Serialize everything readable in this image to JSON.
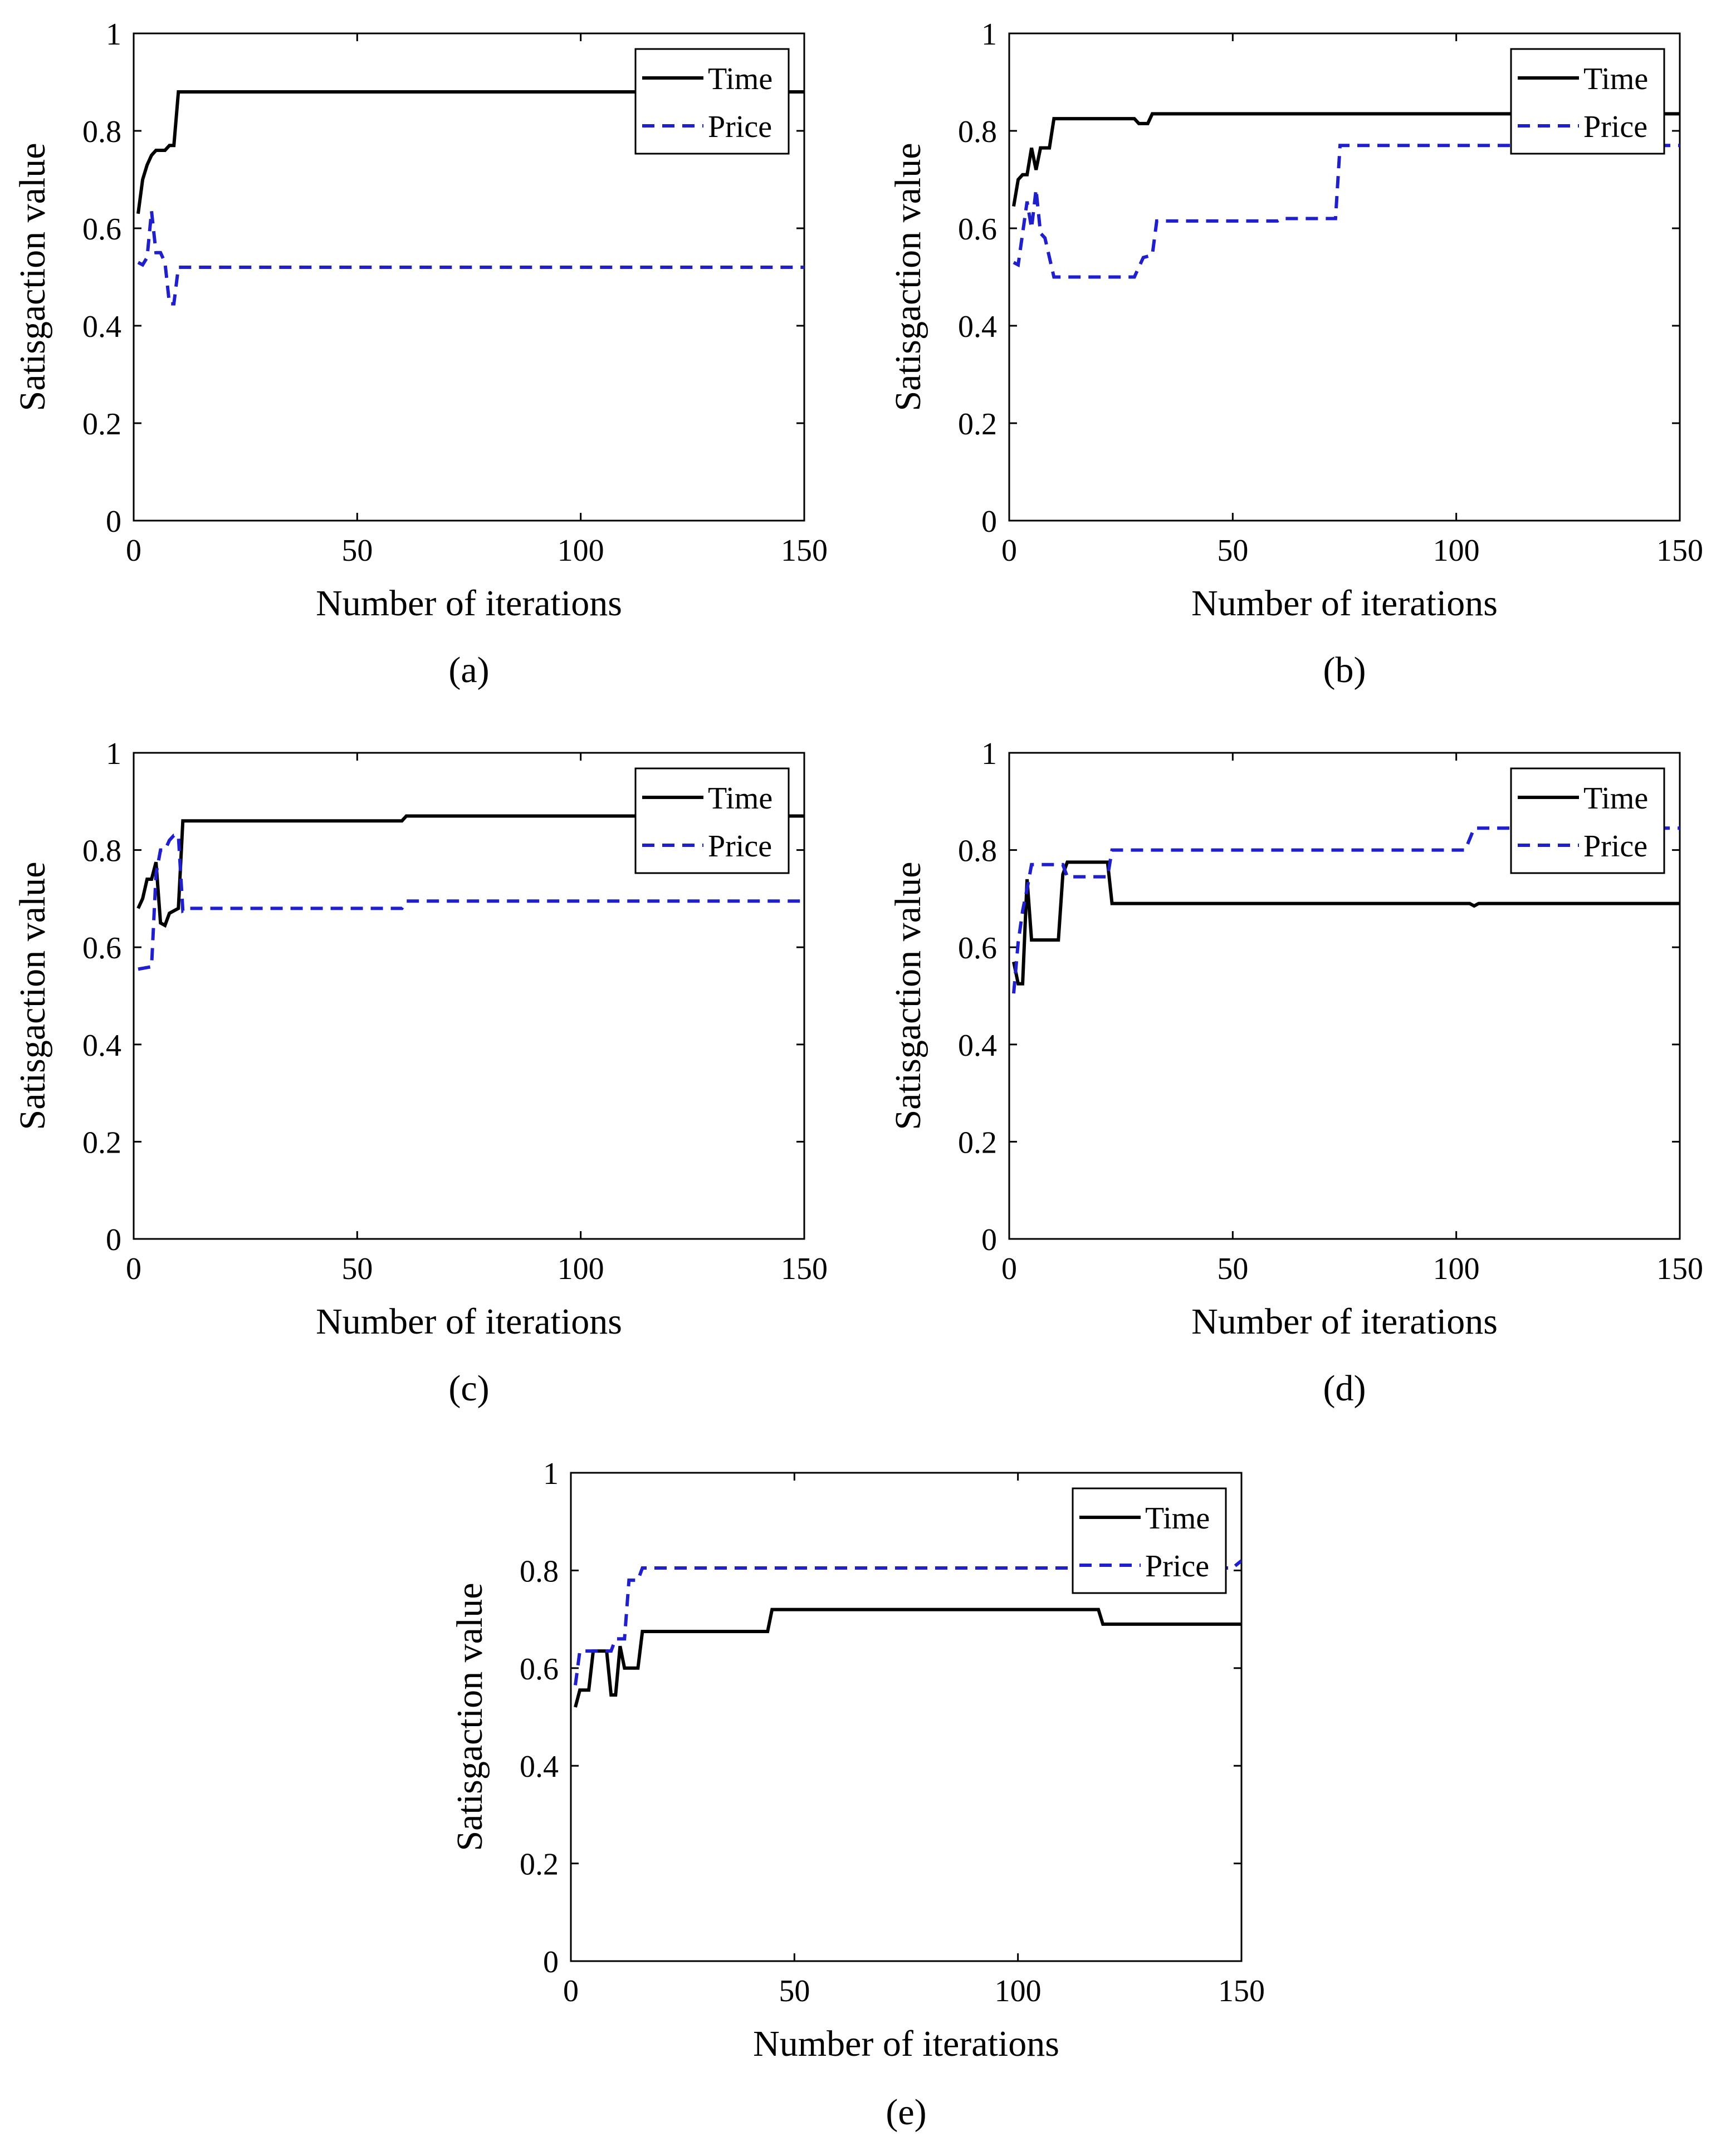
{
  "colors": {
    "time": "#000000",
    "price": "#1f1fcc",
    "axes": "#000000"
  },
  "chart_data": [
    {
      "type": "line",
      "panel": "a",
      "caption": "(a)",
      "xlabel": "Number of iterations",
      "ylabel": "Satisgaction value",
      "xlim": [
        0,
        150
      ],
      "ylim": [
        0,
        1
      ],
      "xticks": [
        0,
        50,
        100,
        150
      ],
      "xtick_labels": [
        "0",
        "50",
        "100",
        "150"
      ],
      "yticks": [
        0,
        0.2,
        0.4,
        0.6,
        0.8,
        1
      ],
      "ytick_labels": [
        "0",
        "0.2",
        "0.4",
        "0.6",
        "0.8",
        "1"
      ],
      "legend": [
        "Time",
        "Price"
      ],
      "legend_position": "top-right",
      "series": [
        {
          "name": "Time",
          "style": "solid",
          "points": [
            [
              1,
              0.63
            ],
            [
              2,
              0.7
            ],
            [
              3,
              0.73
            ],
            [
              4,
              0.75
            ],
            [
              5,
              0.76
            ],
            [
              7,
              0.76
            ],
            [
              8,
              0.77
            ],
            [
              9,
              0.77
            ],
            [
              10,
              0.88
            ],
            [
              150,
              0.88
            ]
          ]
        },
        {
          "name": "Price",
          "style": "dashed",
          "points": [
            [
              1,
              0.53
            ],
            [
              2,
              0.525
            ],
            [
              3,
              0.54
            ],
            [
              4,
              0.635
            ],
            [
              5,
              0.55
            ],
            [
              6,
              0.55
            ],
            [
              7,
              0.53
            ],
            [
              8,
              0.445
            ],
            [
              9,
              0.445
            ],
            [
              10,
              0.52
            ],
            [
              150,
              0.52
            ]
          ]
        }
      ]
    },
    {
      "type": "line",
      "panel": "b",
      "caption": "(b)",
      "xlabel": "Number of iterations",
      "ylabel": "Satisgaction value",
      "xlim": [
        0,
        150
      ],
      "ylim": [
        0,
        1
      ],
      "xticks": [
        0,
        50,
        100,
        150
      ],
      "xtick_labels": [
        "0",
        "50",
        "100",
        "150"
      ],
      "yticks": [
        0,
        0.2,
        0.4,
        0.6,
        0.8,
        1
      ],
      "ytick_labels": [
        "0",
        "0.2",
        "0.4",
        "0.6",
        "0.8",
        "1"
      ],
      "legend": [
        "Time",
        "Price"
      ],
      "legend_position": "top-right",
      "series": [
        {
          "name": "Time",
          "style": "solid",
          "points": [
            [
              1,
              0.645
            ],
            [
              2,
              0.7
            ],
            [
              3,
              0.71
            ],
            [
              4,
              0.71
            ],
            [
              5,
              0.765
            ],
            [
              6,
              0.72
            ],
            [
              7,
              0.765
            ],
            [
              9,
              0.765
            ],
            [
              10,
              0.825
            ],
            [
              28,
              0.825
            ],
            [
              29,
              0.815
            ],
            [
              31,
              0.815
            ],
            [
              32,
              0.835
            ],
            [
              150,
              0.835
            ]
          ]
        },
        {
          "name": "Price",
          "style": "dashed",
          "points": [
            [
              1,
              0.53
            ],
            [
              2,
              0.525
            ],
            [
              3,
              0.59
            ],
            [
              4,
              0.655
            ],
            [
              5,
              0.6
            ],
            [
              6,
              0.68
            ],
            [
              7,
              0.59
            ],
            [
              8,
              0.58
            ],
            [
              10,
              0.5
            ],
            [
              28,
              0.5
            ],
            [
              30,
              0.54
            ],
            [
              32,
              0.545
            ],
            [
              33,
              0.615
            ],
            [
              60,
              0.615
            ],
            [
              61,
              0.62
            ],
            [
              73,
              0.62
            ],
            [
              74,
              0.77
            ],
            [
              150,
              0.77
            ]
          ]
        }
      ]
    },
    {
      "type": "line",
      "panel": "c",
      "caption": "(c)",
      "xlabel": "Number of iterations",
      "ylabel": "Satisgaction value",
      "xlim": [
        0,
        150
      ],
      "ylim": [
        0,
        1
      ],
      "xticks": [
        0,
        50,
        100,
        150
      ],
      "xtick_labels": [
        "0",
        "50",
        "100",
        "150"
      ],
      "yticks": [
        0,
        0.2,
        0.4,
        0.6,
        0.8,
        1
      ],
      "ytick_labels": [
        "0",
        "0.2",
        "0.4",
        "0.6",
        "0.8",
        "1"
      ],
      "legend": [
        "Time",
        "Price"
      ],
      "legend_position": "top-right",
      "series": [
        {
          "name": "Time",
          "style": "solid",
          "points": [
            [
              1,
              0.68
            ],
            [
              2,
              0.7
            ],
            [
              3,
              0.74
            ],
            [
              4,
              0.74
            ],
            [
              5,
              0.775
            ],
            [
              6,
              0.65
            ],
            [
              7,
              0.645
            ],
            [
              8,
              0.67
            ],
            [
              9,
              0.675
            ],
            [
              10,
              0.68
            ],
            [
              11,
              0.86
            ],
            [
              60,
              0.86
            ],
            [
              61,
              0.87
            ],
            [
              150,
              0.87
            ]
          ]
        },
        {
          "name": "Price",
          "style": "dashed",
          "points": [
            [
              1,
              0.555
            ],
            [
              4,
              0.56
            ],
            [
              5,
              0.75
            ],
            [
              6,
              0.8
            ],
            [
              7,
              0.8
            ],
            [
              8,
              0.82
            ],
            [
              9,
              0.83
            ],
            [
              10,
              0.83
            ],
            [
              11,
              0.675
            ],
            [
              12,
              0.68
            ],
            [
              60,
              0.68
            ],
            [
              61,
              0.695
            ],
            [
              150,
              0.695
            ]
          ]
        }
      ]
    },
    {
      "type": "line",
      "panel": "d",
      "caption": "(d)",
      "xlabel": "Number of iterations",
      "ylabel": "Satisgaction value",
      "xlim": [
        0,
        150
      ],
      "ylim": [
        0,
        1
      ],
      "xticks": [
        0,
        50,
        100,
        150
      ],
      "xtick_labels": [
        "0",
        "50",
        "100",
        "150"
      ],
      "yticks": [
        0,
        0.2,
        0.4,
        0.6,
        0.8,
        1
      ],
      "ytick_labels": [
        "0",
        "0.2",
        "0.4",
        "0.6",
        "0.8",
        "1"
      ],
      "legend": [
        "Time",
        "Price"
      ],
      "legend_position": "top-right",
      "series": [
        {
          "name": "Time",
          "style": "solid",
          "points": [
            [
              1,
              0.57
            ],
            [
              2,
              0.525
            ],
            [
              3,
              0.525
            ],
            [
              4,
              0.74
            ],
            [
              5,
              0.615
            ],
            [
              11,
              0.615
            ],
            [
              12,
              0.75
            ],
            [
              13,
              0.775
            ],
            [
              22,
              0.775
            ],
            [
              23,
              0.69
            ],
            [
              103,
              0.69
            ],
            [
              104,
              0.685
            ],
            [
              105,
              0.69
            ],
            [
              150,
              0.69
            ]
          ]
        },
        {
          "name": "Price",
          "style": "dashed",
          "points": [
            [
              1,
              0.505
            ],
            [
              2,
              0.61
            ],
            [
              3,
              0.675
            ],
            [
              4,
              0.72
            ],
            [
              5,
              0.77
            ],
            [
              12,
              0.77
            ],
            [
              13,
              0.745
            ],
            [
              22,
              0.745
            ],
            [
              23,
              0.8
            ],
            [
              102,
              0.8
            ],
            [
              104,
              0.845
            ],
            [
              150,
              0.845
            ]
          ]
        }
      ]
    },
    {
      "type": "line",
      "panel": "e",
      "caption": "(e)",
      "xlabel": "Number of iterations",
      "ylabel": "Satisgaction value",
      "xlim": [
        0,
        150
      ],
      "ylim": [
        0,
        1
      ],
      "xticks": [
        0,
        50,
        100,
        150
      ],
      "xtick_labels": [
        "0",
        "50",
        "100",
        "150"
      ],
      "yticks": [
        0,
        0.2,
        0.4,
        0.6,
        0.8,
        1
      ],
      "ytick_labels": [
        "0",
        "0.2",
        "0.4",
        "0.6",
        "0.8",
        "1"
      ],
      "legend": [
        "Time",
        "Price"
      ],
      "legend_position": "top-right",
      "series": [
        {
          "name": "Time",
          "style": "solid",
          "points": [
            [
              1,
              0.52
            ],
            [
              2,
              0.555
            ],
            [
              4,
              0.555
            ],
            [
              5,
              0.635
            ],
            [
              8,
              0.635
            ],
            [
              9,
              0.545
            ],
            [
              10,
              0.545
            ],
            [
              11,
              0.645
            ],
            [
              12,
              0.6
            ],
            [
              15,
              0.6
            ],
            [
              16,
              0.675
            ],
            [
              44,
              0.675
            ],
            [
              45,
              0.72
            ],
            [
              118,
              0.72
            ],
            [
              119,
              0.69
            ],
            [
              150,
              0.69
            ]
          ]
        },
        {
          "name": "Price",
          "style": "dashed",
          "points": [
            [
              1,
              0.565
            ],
            [
              2,
              0.635
            ],
            [
              9,
              0.635
            ],
            [
              10,
              0.66
            ],
            [
              12,
              0.66
            ],
            [
              13,
              0.78
            ],
            [
              15,
              0.78
            ],
            [
              16,
              0.805
            ],
            [
              148,
              0.805
            ],
            [
              150,
              0.82
            ]
          ]
        }
      ]
    }
  ]
}
